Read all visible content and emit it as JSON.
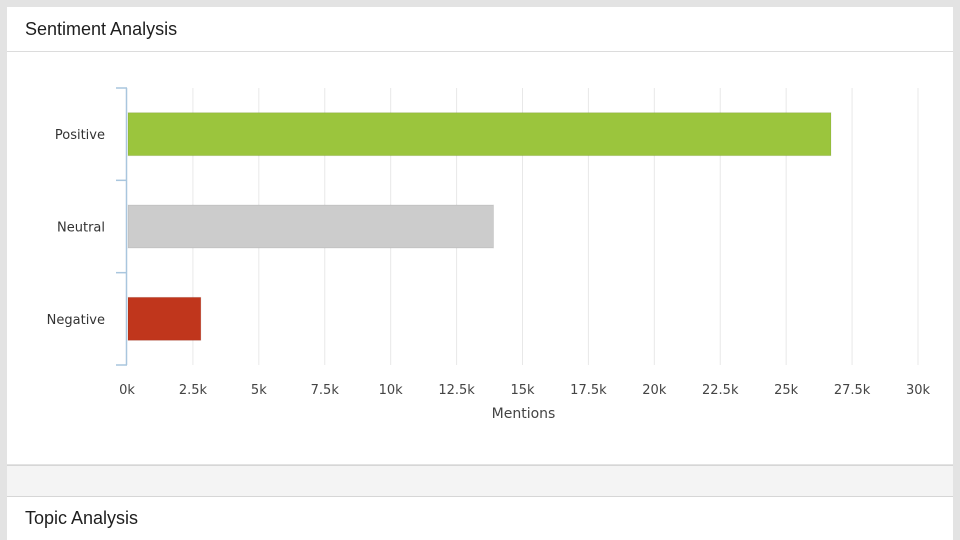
{
  "sections": {
    "sentiment_title": "Sentiment Analysis",
    "topic_title": "Topic Analysis"
  },
  "colors": {
    "positive": "#9bc53d",
    "neutral": "#cccccc",
    "negative": "#c0361c",
    "grid": "#e8e8e8",
    "axis": "#a9c6de"
  },
  "chart_data": {
    "type": "bar",
    "orientation": "horizontal",
    "categories": [
      "Positive",
      "Neutral",
      "Negative"
    ],
    "values": [
      26700,
      13900,
      2800
    ],
    "xlabel": "Mentions",
    "ylabel": "",
    "xlim": [
      0,
      30000
    ],
    "ticks": [
      "0k",
      "2.5k",
      "5k",
      "7.5k",
      "10k",
      "12.5k",
      "15k",
      "17.5k",
      "20k",
      "22.5k",
      "25k",
      "27.5k",
      "30k"
    ],
    "grid": true,
    "legend": "none"
  }
}
